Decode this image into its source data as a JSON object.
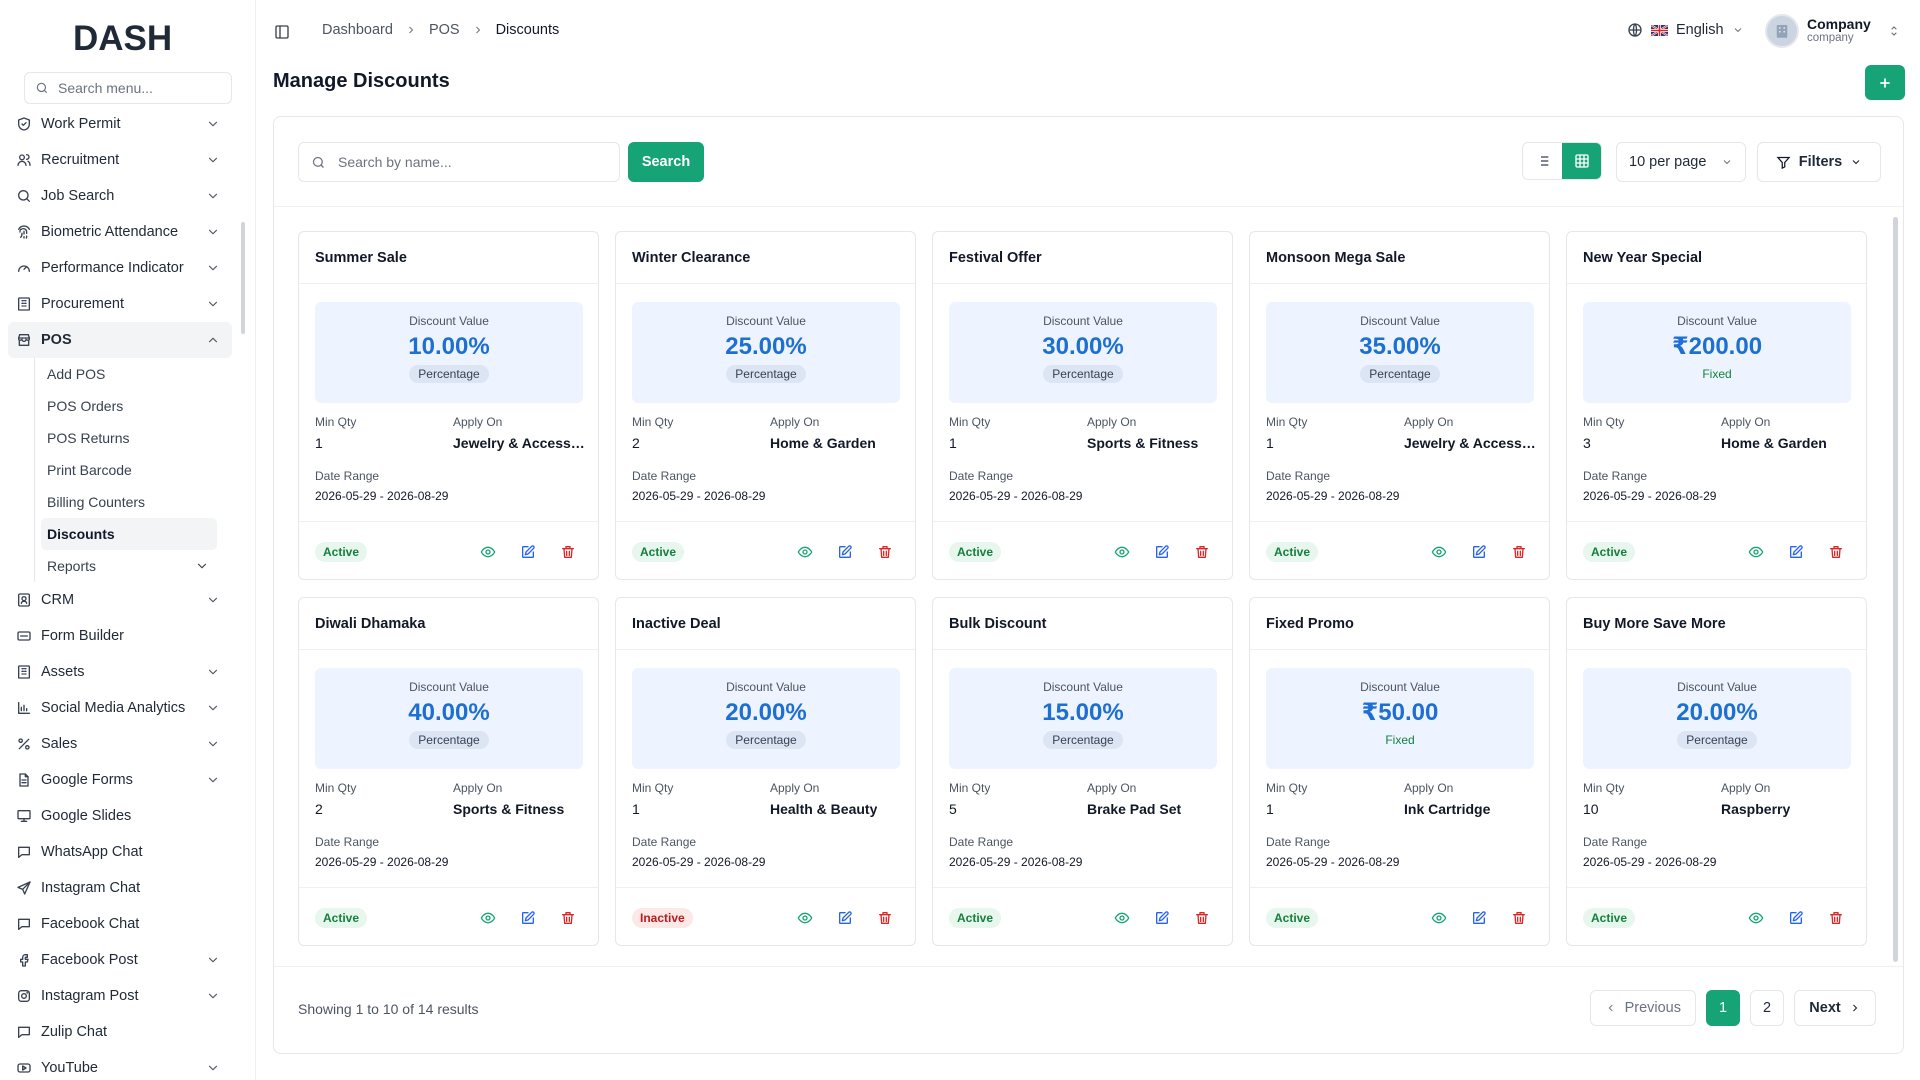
{
  "brand": {
    "logo_text": "DASH",
    "accent": "#16a376"
  },
  "sidebar": {
    "search_placeholder": "Search menu...",
    "items": [
      {
        "label": "Work Permit",
        "icon": "shield-check-icon",
        "chevron": true
      },
      {
        "label": "Recruitment",
        "icon": "users-icon",
        "chevron": true
      },
      {
        "label": "Job Search",
        "icon": "search-icon",
        "chevron": true
      },
      {
        "label": "Biometric Attendance",
        "icon": "fingerprint-icon",
        "chevron": true
      },
      {
        "label": "Performance Indicator",
        "icon": "gauge-icon",
        "chevron": true
      },
      {
        "label": "Procurement",
        "icon": "building-icon",
        "chevron": true
      },
      {
        "label": "POS",
        "icon": "store-icon",
        "chevron": true,
        "expanded": true
      }
    ],
    "pos_sub": [
      {
        "label": "Add POS"
      },
      {
        "label": "POS Orders"
      },
      {
        "label": "POS Returns"
      },
      {
        "label": "Print Barcode"
      },
      {
        "label": "Billing Counters"
      },
      {
        "label": "Discounts",
        "active": true
      },
      {
        "label": "Reports",
        "chevron": true
      }
    ],
    "items_after": [
      {
        "label": "CRM",
        "icon": "contact-icon",
        "chevron": true
      },
      {
        "label": "Form Builder",
        "icon": "form-icon",
        "chevron": false
      },
      {
        "label": "Assets",
        "icon": "building-icon",
        "chevron": true
      },
      {
        "label": "Social Media Analytics",
        "icon": "bar-chart-icon",
        "chevron": true
      },
      {
        "label": "Sales",
        "icon": "percent-icon",
        "chevron": true
      },
      {
        "label": "Google Forms",
        "icon": "document-icon",
        "chevron": true
      },
      {
        "label": "Google Slides",
        "icon": "presentation-icon",
        "chevron": false
      },
      {
        "label": "WhatsApp Chat",
        "icon": "message-icon",
        "chevron": false
      },
      {
        "label": "Instagram Chat",
        "icon": "send-icon",
        "chevron": false
      },
      {
        "label": "Facebook Chat",
        "icon": "message-icon",
        "chevron": false
      },
      {
        "label": "Facebook Post",
        "icon": "facebook-icon",
        "chevron": true
      },
      {
        "label": "Instagram Post",
        "icon": "instagram-icon",
        "chevron": true
      },
      {
        "label": "Zulip Chat",
        "icon": "message-icon",
        "chevron": false
      },
      {
        "label": "YouTube",
        "icon": "youtube-icon",
        "chevron": true
      }
    ]
  },
  "header": {
    "breadcrumbs": [
      "Dashboard",
      "POS",
      "Discounts"
    ],
    "language": "English",
    "user_name": "Company",
    "user_role": "company"
  },
  "page": {
    "title": "Manage Discounts"
  },
  "toolbar": {
    "search_placeholder": "Search by name...",
    "search_label": "Search",
    "per_page": "10 per page",
    "filters_label": "Filters"
  },
  "labels": {
    "discount_value": "Discount Value",
    "min_qty": "Min Qty",
    "apply_on": "Apply On",
    "date_range": "Date Range"
  },
  "discounts": [
    {
      "name": "Summer Sale",
      "value": "10.00%",
      "type": "Percentage",
      "min_qty": "1",
      "apply_on": "Jewelry & Accessories",
      "date_range": "2026-05-29 - 2026-08-29",
      "status": "Active"
    },
    {
      "name": "Winter Clearance",
      "value": "25.00%",
      "type": "Percentage",
      "min_qty": "2",
      "apply_on": "Home & Garden",
      "date_range": "2026-05-29 - 2026-08-29",
      "status": "Active"
    },
    {
      "name": "Festival Offer",
      "value": "30.00%",
      "type": "Percentage",
      "min_qty": "1",
      "apply_on": "Sports & Fitness",
      "date_range": "2026-05-29 - 2026-08-29",
      "status": "Active"
    },
    {
      "name": "Monsoon Mega Sale",
      "value": "35.00%",
      "type": "Percentage",
      "min_qty": "1",
      "apply_on": "Jewelry & Accessories",
      "date_range": "2026-05-29 - 2026-08-29",
      "status": "Active"
    },
    {
      "name": "New Year Special",
      "value": "₹200.00",
      "type": "Fixed",
      "min_qty": "3",
      "apply_on": "Home & Garden",
      "date_range": "2026-05-29 - 2026-08-29",
      "status": "Active"
    },
    {
      "name": "Diwali Dhamaka",
      "value": "40.00%",
      "type": "Percentage",
      "min_qty": "2",
      "apply_on": "Sports & Fitness",
      "date_range": "2026-05-29 - 2026-08-29",
      "status": "Active"
    },
    {
      "name": "Inactive Deal",
      "value": "20.00%",
      "type": "Percentage",
      "min_qty": "1",
      "apply_on": "Health & Beauty",
      "date_range": "2026-05-29 - 2026-08-29",
      "status": "Inactive"
    },
    {
      "name": "Bulk Discount",
      "value": "15.00%",
      "type": "Percentage",
      "min_qty": "5",
      "apply_on": "Brake Pad Set",
      "date_range": "2026-05-29 - 2026-08-29",
      "status": "Active"
    },
    {
      "name": "Fixed Promo",
      "value": "₹50.00",
      "type": "Fixed",
      "min_qty": "1",
      "apply_on": "Ink Cartridge",
      "date_range": "2026-05-29 - 2026-08-29",
      "status": "Active"
    },
    {
      "name": "Buy More Save More",
      "value": "20.00%",
      "type": "Percentage",
      "min_qty": "10",
      "apply_on": "Raspberry",
      "date_range": "2026-05-29 - 2026-08-29",
      "status": "Active"
    }
  ],
  "pagination": {
    "summary": "Showing 1 to 10 of 14 results",
    "previous": "Previous",
    "next": "Next",
    "pages": [
      "1",
      "2"
    ],
    "current": "1"
  }
}
